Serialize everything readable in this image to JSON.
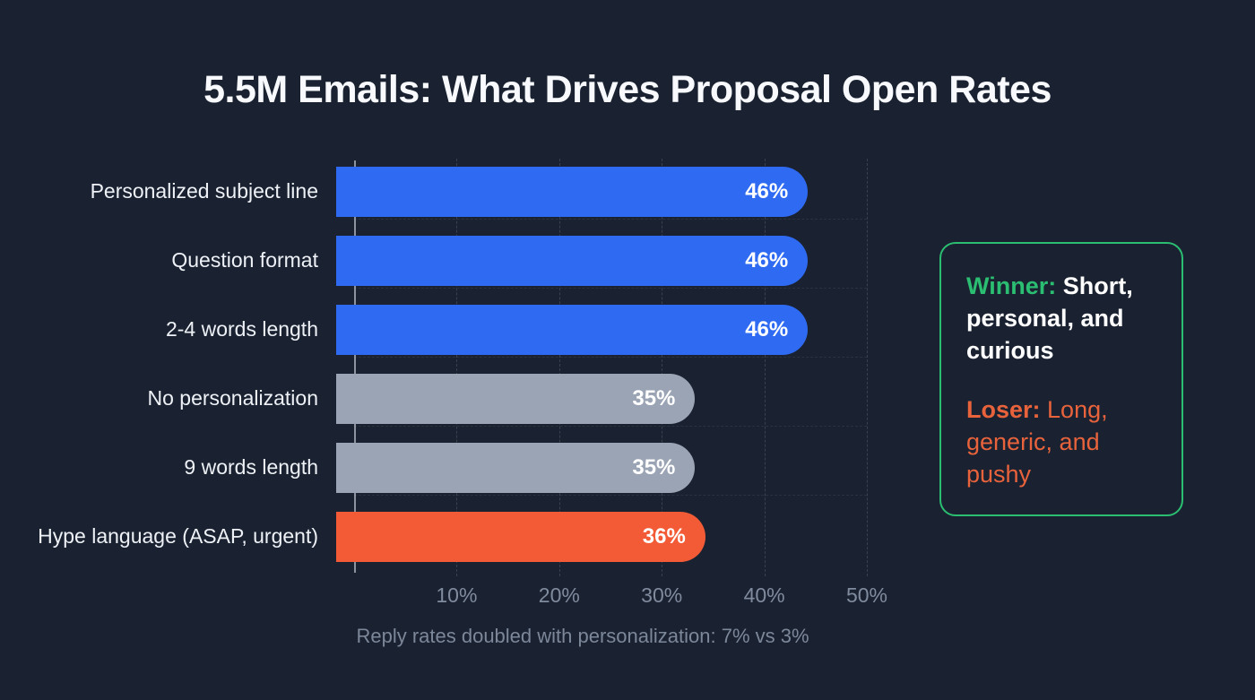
{
  "title": "5.5M Emails: What Drives Proposal Open Rates",
  "chart_data": {
    "type": "bar",
    "orientation": "horizontal",
    "title": "5.5M Emails: What Drives Proposal Open Rates",
    "categories": [
      "Personalized subject line",
      "Question format",
      "2-4 words length",
      "No personalization",
      "9 words length",
      "Hype language (ASAP, urgent)"
    ],
    "values": [
      46,
      46,
      46,
      35,
      35,
      36
    ],
    "value_labels": [
      "46%",
      "46%",
      "46%",
      "35%",
      "35%",
      "36%"
    ],
    "bar_colors": [
      "#2e6bf2",
      "#2e6bf2",
      "#2e6bf2",
      "#9aa4b4",
      "#9aa4b4",
      "#f25b35"
    ],
    "xlim": [
      0,
      50
    ],
    "x_ticks": [
      {
        "label": "10%",
        "value": 10
      },
      {
        "label": "20%",
        "value": 20
      },
      {
        "label": "30%",
        "value": 30
      },
      {
        "label": "40%",
        "value": 40
      },
      {
        "label": "50%",
        "value": 50
      }
    ],
    "grid": "dashed-vertical",
    "legend": "none",
    "caption": "Reply rates doubled with personalization: 7% vs 3%"
  },
  "callout": {
    "winner_label": "Winner:",
    "winner_text": " Short, personal, and curious",
    "loser_label": "Loser:",
    "loser_text": " Long, generic, and pushy",
    "border_color": "#2bbd71",
    "winner_color": "#2bbd71",
    "loser_color": "#e8633c"
  },
  "colors": {
    "background": "#1a2231",
    "title_text": "#f7f9fc",
    "label_text": "#eef1f6",
    "tick_text": "#808b9e",
    "caption_text": "#7c8799",
    "bar_blue": "#2e6bf2",
    "bar_gray": "#9aa4b4",
    "bar_orange": "#f25b35"
  }
}
